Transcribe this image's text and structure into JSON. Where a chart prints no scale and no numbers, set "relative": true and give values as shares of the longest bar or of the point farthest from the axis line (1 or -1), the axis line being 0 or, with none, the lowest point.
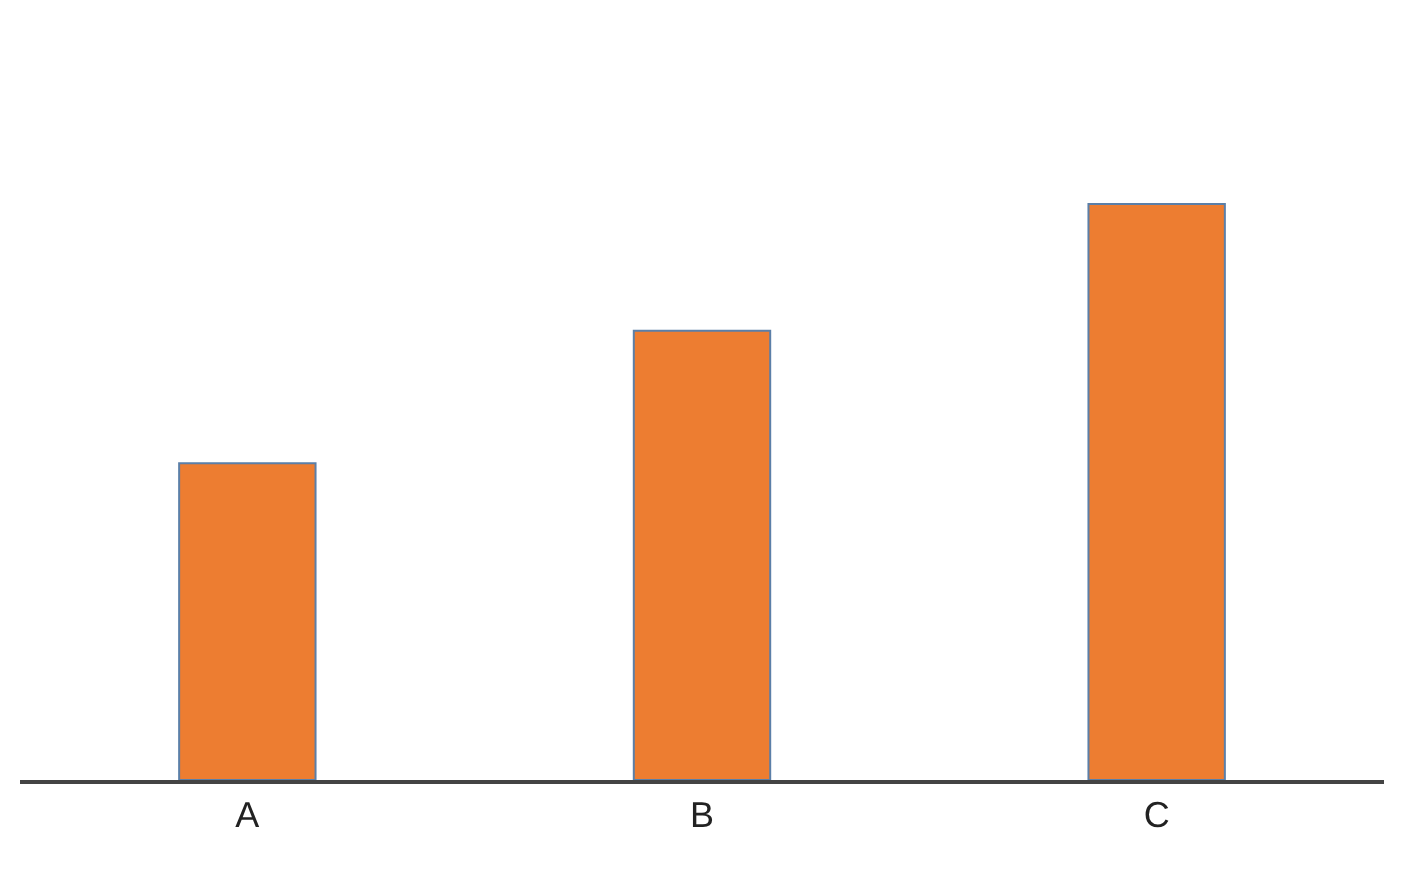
{
  "chart_data": {
    "type": "bar",
    "relative": true,
    "categories": [
      "A",
      "B",
      "C"
    ],
    "values": [
      0.55,
      0.78,
      1
    ],
    "color": "#ed7d31"
  }
}
